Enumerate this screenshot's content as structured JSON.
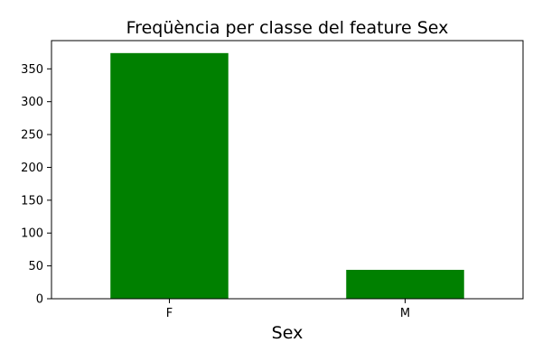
{
  "chart_data": {
    "type": "bar",
    "title": "Freqüència per classe del feature Sex",
    "xlabel": "Sex",
    "ylabel": "",
    "categories": [
      "F",
      "M"
    ],
    "values": [
      374,
      44
    ],
    "ylim": [
      0,
      393
    ],
    "yticks": [
      "0",
      "50",
      "100",
      "150",
      "200",
      "250",
      "300",
      "350"
    ],
    "bar_color": "#008000",
    "grid": false,
    "legend": "none"
  }
}
